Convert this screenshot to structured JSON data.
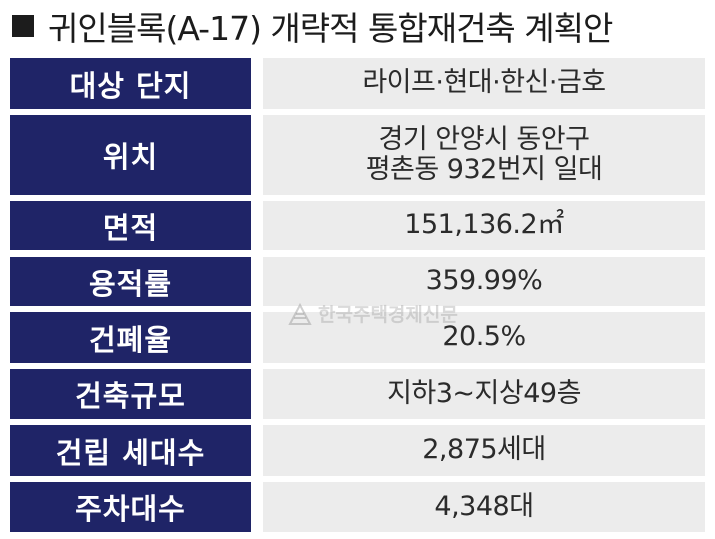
{
  "title": "귀인블록(A-17) 개략적 통합재건축 계획안",
  "rows": [
    {
      "label": "대상 단지",
      "lines": [
        "라이프·현대·한신·금호"
      ]
    },
    {
      "label": "위치",
      "lines": [
        "경기 안양시 동안구",
        "평촌동 932번지 일대"
      ]
    },
    {
      "label": "면적",
      "lines": [
        "151,136.2㎡"
      ]
    },
    {
      "label": "용적률",
      "lines": [
        "359.99%"
      ]
    },
    {
      "label": "건폐율",
      "lines": [
        "20.5%"
      ]
    },
    {
      "label": "건축규모",
      "lines": [
        "지하3∼지상49층"
      ]
    },
    {
      "label": "건립 세대수",
      "lines": [
        "2,875세대"
      ]
    },
    {
      "label": "주차대수",
      "lines": [
        "4,348대"
      ]
    }
  ],
  "watermark": "한국주택경제신문",
  "colors": {
    "label_bg": "#1f2467",
    "value_bg": "#ececec",
    "text_dark": "#1c1c1c"
  }
}
